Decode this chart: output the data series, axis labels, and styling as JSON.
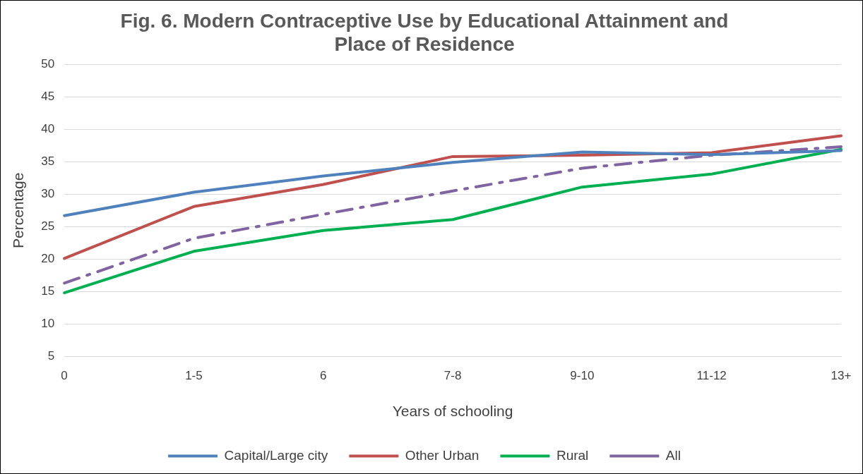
{
  "chart_data": {
    "type": "line",
    "title": "Fig. 6. Modern Contraceptive Use by Educational Attainment and Place of Residence",
    "xlabel": "Years of schooling",
    "ylabel": "Percentage",
    "categories": [
      "0",
      "1-5",
      "6",
      "7-8",
      "9-10",
      "11-12",
      "13+"
    ],
    "series": [
      {
        "name": "Capital/Large city",
        "color": "#4f81bd",
        "values": [
          26.7,
          30.3,
          32.8,
          34.9,
          36.5,
          36.1,
          36.7
        ]
      },
      {
        "name": "Other Urban",
        "color": "#c0504d",
        "values": [
          20.1,
          28.1,
          31.5,
          35.8,
          36.0,
          36.4,
          39.0
        ]
      },
      {
        "name": "Rural",
        "color": "#00b050",
        "values": [
          14.8,
          21.2,
          24.4,
          26.1,
          31.1,
          33.1,
          36.9
        ]
      },
      {
        "name": "All",
        "color": "#8064a2",
        "line_style": "dashed",
        "values": [
          16.3,
          23.2,
          26.9,
          30.5,
          34.0,
          36.0,
          37.3
        ]
      }
    ],
    "ylim": [
      5,
      50
    ],
    "yticks": [
      5,
      10,
      15,
      20,
      25,
      30,
      35,
      40,
      45,
      50
    ],
    "grid": "y",
    "legend": "bottom",
    "marker": "none"
  }
}
